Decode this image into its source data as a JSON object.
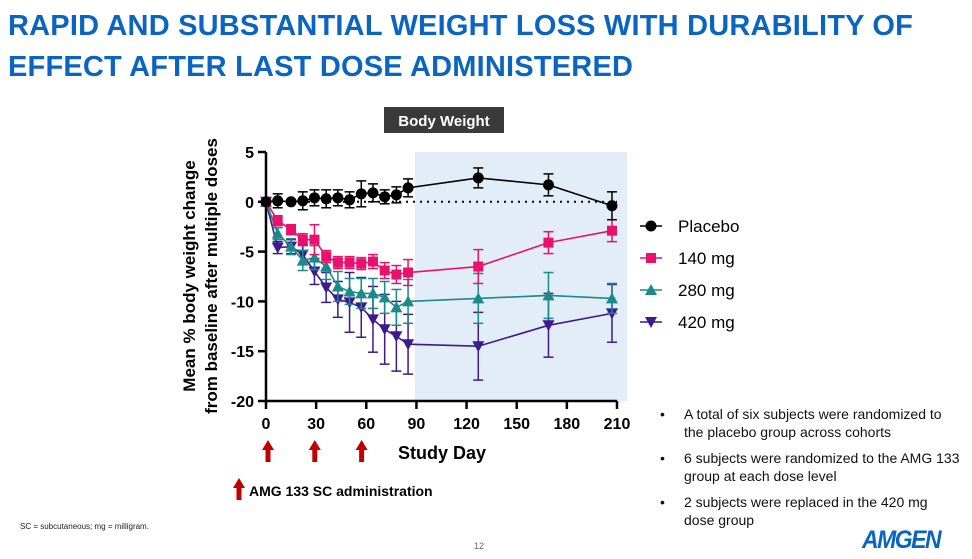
{
  "slide": {
    "title_lines": [
      "RAPID AND SUBSTANTIAL WEIGHT LOSS WITH DURABILITY OF",
      "EFFECT AFTER LAST DOSE ADMINISTERED"
    ],
    "bullets": [
      "A total of six subjects were randomized to the placebo group across cohorts",
      "6 subjects were randomized to the AMG 133 group at each dose level",
      "2 subjects were replaced in the 420 mg dose group"
    ],
    "footnote": "SC = subcutaneous; mg = milligram.",
    "page_number": "12",
    "logo_text": "AMGEN",
    "title_color": "#0a64c2"
  },
  "chart_data": {
    "type": "line",
    "title": "Body Weight",
    "xlabel": "Study Day",
    "ylabel_lines": [
      "Mean % body weight change",
      "from baseline after multiple doses"
    ],
    "xlim": [
      0,
      210
    ],
    "ylim": [
      -20,
      5
    ],
    "xticks": [
      0,
      30,
      60,
      90,
      120,
      150,
      180,
      210
    ],
    "yticks": [
      5,
      0,
      -5,
      -10,
      -15,
      -20
    ],
    "reference_line_y": 0,
    "shaded_region_x": [
      89,
      216
    ],
    "shaded_color": "#e3edf7",
    "legend_placement": "right",
    "dosing_days": [
      0,
      28,
      56
    ],
    "dosing_annotation": "AMG 133 SC administration",
    "dosing_arrow_color": "#c00000",
    "x": [
      0,
      7,
      15,
      22,
      29,
      36,
      43,
      50,
      57,
      64,
      71,
      78,
      85,
      127,
      169,
      207
    ],
    "series": [
      {
        "name": "Placebo",
        "color": "#000000",
        "marker": "circle",
        "values": [
          0,
          0.1,
          0,
          0.1,
          0.4,
          0.3,
          0.4,
          0.2,
          0.8,
          0.9,
          0.5,
          0.7,
          1.4,
          2.4,
          1.7,
          -0.4
        ],
        "error": [
          0,
          0.7,
          0.2,
          0.9,
          0.8,
          0.9,
          0.8,
          0.8,
          1.3,
          0.9,
          0.7,
          0.8,
          0.9,
          1.0,
          1.1,
          1.4
        ]
      },
      {
        "name": "140 mg",
        "color": "#e8116b",
        "marker": "square",
        "values": [
          0,
          -1.9,
          -2.8,
          -3.8,
          -3.8,
          -5.5,
          -6.1,
          -6.1,
          -6.2,
          -6.0,
          -6.9,
          -7.3,
          -7.1,
          -6.5,
          -4.1,
          -2.9
        ],
        "error": [
          0,
          0.5,
          0.5,
          0.6,
          1.5,
          0.6,
          0.6,
          0.6,
          0.6,
          0.7,
          0.8,
          0.9,
          1.3,
          1.7,
          1.1,
          1.1
        ]
      },
      {
        "name": "280 mg",
        "color": "#1a8a8a",
        "marker": "triangle-up",
        "values": [
          0,
          -3.2,
          -4.5,
          -5.9,
          -5.6,
          -6.5,
          -8.5,
          -9.0,
          -9.2,
          -9.2,
          -9.6,
          -10.6,
          -10.0,
          -9.7,
          -9.4,
          -9.7
        ],
        "error": [
          0,
          0.6,
          0.8,
          1.0,
          1.2,
          1.3,
          1.5,
          1.3,
          1.5,
          1.5,
          1.6,
          1.8,
          2.2,
          2.5,
          2.3,
          1.5
        ]
      },
      {
        "name": "420 mg",
        "color": "#3d1a8c",
        "marker": "triangle-down",
        "values": [
          0,
          -4.6,
          -4.5,
          -5.3,
          -7.0,
          -8.6,
          -9.8,
          -10.1,
          -10.6,
          -11.8,
          -12.8,
          -13.5,
          -14.3,
          -14.5,
          -12.4,
          -11.2
        ],
        "error": [
          0,
          0.6,
          0.7,
          1.0,
          1.3,
          1.5,
          1.8,
          3.0,
          3.0,
          3.3,
          3.5,
          3.5,
          3.0,
          3.4,
          3.2,
          2.9
        ]
      }
    ]
  }
}
